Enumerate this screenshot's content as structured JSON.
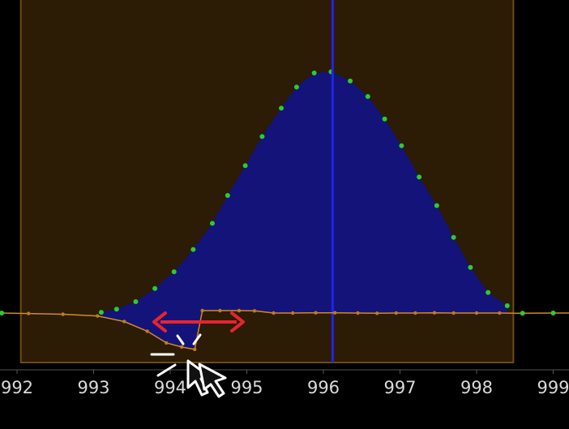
{
  "chart_data": {
    "type": "area",
    "xlim": [
      991.8,
      999.3
    ],
    "ylim": [
      -0.12,
      1.0
    ],
    "x_ticks": [
      "992",
      "993",
      "994",
      "995",
      "996",
      "997",
      "998",
      "999"
    ],
    "selection_range": [
      992.05,
      998.48
    ],
    "peak_marker_x": 996.12,
    "series": [
      {
        "role": "peak",
        "x": [
          993.1,
          993.3,
          993.55,
          993.8,
          994.05,
          994.3,
          994.55,
          994.75,
          994.98,
          995.2,
          995.45,
          995.65,
          995.88,
          996.1,
          996.35,
          996.58,
          996.8,
          997.02,
          997.25,
          997.48,
          997.7,
          997.92,
          998.15,
          998.4
        ],
        "y": [
          0.003,
          0.016,
          0.047,
          0.101,
          0.17,
          0.262,
          0.37,
          0.485,
          0.608,
          0.728,
          0.845,
          0.932,
          0.99,
          0.995,
          0.957,
          0.893,
          0.8,
          0.69,
          0.561,
          0.443,
          0.312,
          0.188,
          0.085,
          0.03
        ]
      },
      {
        "role": "baseline",
        "x": [
          991.8,
          992.15,
          992.6,
          993.05,
          993.4,
          993.7,
          993.95,
          994.15,
          994.32,
          994.42,
          994.65,
          994.9,
          995.1,
          995.35,
          995.6,
          995.9,
          996.15,
          996.45,
          996.7,
          996.95,
          997.2,
          997.45,
          997.7,
          998.0,
          998.3,
          998.6,
          999.0,
          999.3
        ],
        "y": [
          0.0,
          -0.002,
          -0.005,
          -0.012,
          -0.035,
          -0.075,
          -0.123,
          -0.14,
          -0.15,
          0.01,
          0.01,
          0.01,
          0.009,
          0.0,
          0.0,
          0.001,
          0.001,
          0.0,
          -0.001,
          0.0,
          0.0,
          0.001,
          0.0,
          0.0,
          0.0,
          -0.001,
          0.0,
          0.0
        ]
      }
    ]
  },
  "colors": {
    "background": "#000000",
    "selection_fill": "#2c1b05",
    "selection_border": "#6b4d12",
    "peak_fill": "#13137a",
    "peak_points": "#2dcc2d",
    "baseline_line": "#d18a24",
    "baseline_points": "#c07c1c",
    "peak_marker": "#2323e0",
    "axis_line": "#555555",
    "arrow": "#e8242e",
    "cursor": "#ffffff"
  },
  "icons": {
    "resize_arrow": "double-arrow-icon",
    "cursor": "click-cursor-icon"
  }
}
